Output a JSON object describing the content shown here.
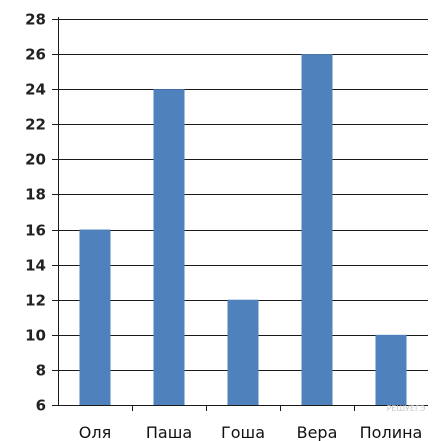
{
  "chart_data": {
    "type": "bar",
    "categories": [
      "Оля",
      "Паша",
      "Гоша",
      "Вера",
      "Полина"
    ],
    "values": [
      16,
      24,
      12,
      26,
      10
    ],
    "ylim": [
      6,
      28
    ],
    "yticks": [
      6,
      8,
      10,
      12,
      14,
      16,
      18,
      20,
      22,
      24,
      26,
      28
    ],
    "grid": true,
    "legend": "none",
    "bar_color": "#4f81bd",
    "grid_color": "#1a1a1a"
  },
  "watermark": "РЕШУЕГЭ"
}
